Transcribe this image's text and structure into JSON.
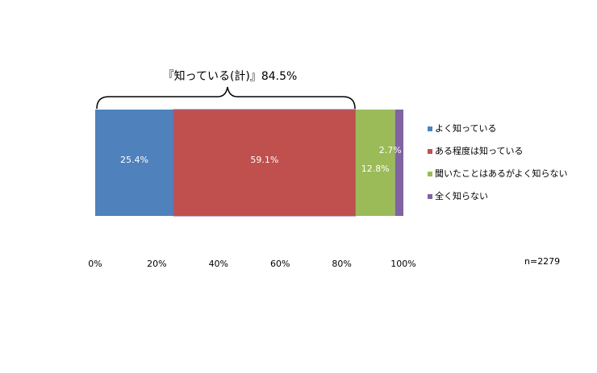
{
  "chart_data": {
    "type": "stacked-bar-horizontal",
    "annotations": [
      "『知っている(計)』84.5%",
      "n=2279"
    ],
    "series": [
      {
        "name": "よく知っている",
        "color": "#4f81bd",
        "values": [
          25.4
        ],
        "value_labels": [
          "25.4%"
        ]
      },
      {
        "name": "ある程度は知っている",
        "color": "#c0504d",
        "values": [
          59.1
        ],
        "value_labels": [
          "59.1%"
        ]
      },
      {
        "name": "聞いたことはあるがよく知らない",
        "color": "#9bbb59",
        "values": [
          12.8
        ],
        "value_labels": [
          "12.8%"
        ]
      },
      {
        "name": "全く知らない",
        "color": "#8064a2",
        "values": [
          2.7
        ],
        "value_labels": [
          "2.7%"
        ]
      }
    ],
    "xlim": [
      0,
      100
    ],
    "xticks": [
      {
        "value": 0,
        "label": "0%"
      },
      {
        "value": 20,
        "label": "20%"
      },
      {
        "value": 40,
        "label": "40%"
      },
      {
        "value": 60,
        "label": "60%"
      },
      {
        "value": 80,
        "label": "80%"
      },
      {
        "value": 100,
        "label": "100%"
      }
    ],
    "legend": "right"
  }
}
